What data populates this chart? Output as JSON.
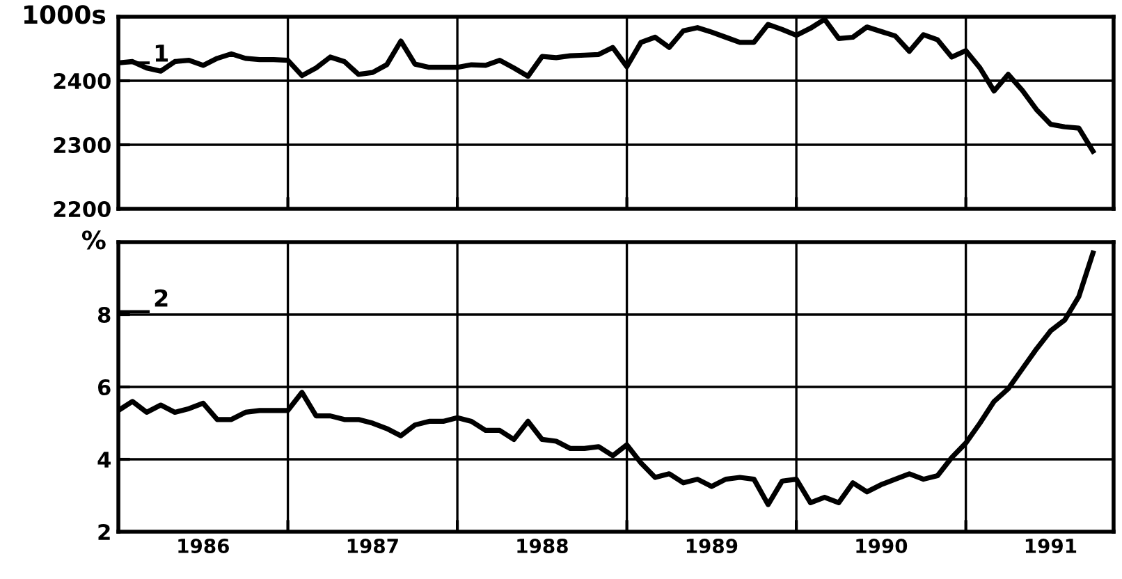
{
  "chart_data": [
    {
      "type": "line",
      "x": [
        "1986-01",
        "1986-02",
        "1986-03",
        "1986-04",
        "1986-05",
        "1986-06",
        "1986-07",
        "1986-08",
        "1986-09",
        "1986-10",
        "1986-11",
        "1986-12",
        "1987-01",
        "1987-02",
        "1987-03",
        "1987-04",
        "1987-05",
        "1987-06",
        "1987-07",
        "1987-08",
        "1987-09",
        "1987-10",
        "1987-11",
        "1987-12",
        "1988-01",
        "1988-02",
        "1988-03",
        "1988-04",
        "1988-05",
        "1988-06",
        "1988-07",
        "1988-08",
        "1988-09",
        "1988-10",
        "1988-11",
        "1988-12",
        "1989-01",
        "1989-02",
        "1989-03",
        "1989-04",
        "1989-05",
        "1989-06",
        "1989-07",
        "1989-08",
        "1989-09",
        "1989-10",
        "1989-11",
        "1989-12",
        "1990-01",
        "1990-02",
        "1990-03",
        "1990-04",
        "1990-05",
        "1990-06",
        "1990-07",
        "1990-08",
        "1990-09",
        "1990-10",
        "1990-11",
        "1990-12",
        "1991-01",
        "1991-02",
        "1991-03",
        "1991-04",
        "1991-05",
        "1991-06",
        "1991-07",
        "1991-08",
        "1991-09",
        "1991-10"
      ],
      "series": [
        {
          "name": "1",
          "color": "#000000",
          "values": [
            2428,
            2430,
            2420,
            2415,
            2430,
            2432,
            2424,
            2435,
            2442,
            2435,
            2433,
            2433,
            2432,
            2408,
            2420,
            2437,
            2430,
            2410,
            2413,
            2425,
            2462,
            2426,
            2421,
            2421,
            2421,
            2425,
            2424,
            2432,
            2420,
            2407,
            2438,
            2436,
            2439,
            2440,
            2441,
            2452,
            2422,
            2460,
            2468,
            2452,
            2478,
            2483,
            2476,
            2468,
            2460,
            2460,
            2488,
            2480,
            2471,
            2482,
            2496,
            2466,
            2468,
            2484,
            2477,
            2470,
            2446,
            2472,
            2464,
            2437,
            2447,
            2420,
            2384,
            2410,
            2385,
            2355,
            2332,
            2328,
            2326,
            2290
          ]
        }
      ],
      "xlim": [
        "1986-01-01",
        "1991-11-15"
      ],
      "xticks": [
        {
          "value": "1987-01-01",
          "label": null
        },
        {
          "value": "1988-01-01",
          "label": null
        },
        {
          "value": "1989-01-01",
          "label": null
        },
        {
          "value": "1990-01-01",
          "label": null
        },
        {
          "value": "1991-01-01",
          "label": null
        }
      ],
      "ylim": [
        2200,
        2500
      ],
      "yticks": [
        2200,
        2300,
        2400,
        {
          "value": 2500,
          "label": null
        }
      ],
      "ylabel": "1000s",
      "tick_labels": "y",
      "grid": true,
      "legend": "top left",
      "marker": "none",
      "line_style": "solid"
    },
    {
      "type": "line",
      "x": [
        "1986-01",
        "1986-02",
        "1986-03",
        "1986-04",
        "1986-05",
        "1986-06",
        "1986-07",
        "1986-08",
        "1986-09",
        "1986-10",
        "1986-11",
        "1986-12",
        "1987-01",
        "1987-02",
        "1987-03",
        "1987-04",
        "1987-05",
        "1987-06",
        "1987-07",
        "1987-08",
        "1987-09",
        "1987-10",
        "1987-11",
        "1987-12",
        "1988-01",
        "1988-02",
        "1988-03",
        "1988-04",
        "1988-05",
        "1988-06",
        "1988-07",
        "1988-08",
        "1988-09",
        "1988-10",
        "1988-11",
        "1988-12",
        "1989-01",
        "1989-02",
        "1989-03",
        "1989-04",
        "1989-05",
        "1989-06",
        "1989-07",
        "1989-08",
        "1989-09",
        "1989-10",
        "1989-11",
        "1989-12",
        "1990-01",
        "1990-02",
        "1990-03",
        "1990-04",
        "1990-05",
        "1990-06",
        "1990-07",
        "1990-08",
        "1990-09",
        "1990-10",
        "1990-11",
        "1990-12",
        "1991-01",
        "1991-02",
        "1991-03",
        "1991-04",
        "1991-05",
        "1991-06",
        "1991-07",
        "1991-08",
        "1991-09",
        "1991-10"
      ],
      "series": [
        {
          "name": "2",
          "color": "#000000",
          "values": [
            5.35,
            5.6,
            5.3,
            5.5,
            5.3,
            5.4,
            5.55,
            5.1,
            5.1,
            5.3,
            5.35,
            5.35,
            5.35,
            5.85,
            5.2,
            5.2,
            5.1,
            5.1,
            5.0,
            4.85,
            4.65,
            4.95,
            5.05,
            5.05,
            5.15,
            5.05,
            4.8,
            4.8,
            4.55,
            5.05,
            4.55,
            4.5,
            4.3,
            4.3,
            4.35,
            4.1,
            4.4,
            3.9,
            3.5,
            3.6,
            3.35,
            3.45,
            3.25,
            3.45,
            3.5,
            3.45,
            2.75,
            3.4,
            3.45,
            2.8,
            2.95,
            2.8,
            3.35,
            3.1,
            3.3,
            3.45,
            3.6,
            3.45,
            3.55,
            4.05,
            4.45,
            5.0,
            5.6,
            5.95,
            6.5,
            7.05,
            7.55,
            7.85,
            8.5,
            9.7
          ]
        }
      ],
      "xlim": [
        "1986-01-01",
        "1991-11-15"
      ],
      "xticks": [
        {
          "value": "1986-07-01",
          "label": "1986"
        },
        {
          "value": "1987-01-01",
          "label": null
        },
        {
          "value": "1987-07-01",
          "label": "1987"
        },
        {
          "value": "1988-01-01",
          "label": null
        },
        {
          "value": "1988-07-01",
          "label": "1988"
        },
        {
          "value": "1989-01-01",
          "label": null
        },
        {
          "value": "1989-07-01",
          "label": "1989"
        },
        {
          "value": "1990-01-01",
          "label": null
        },
        {
          "value": "1990-07-01",
          "label": "1990"
        },
        {
          "value": "1991-01-01",
          "label": null
        },
        {
          "value": "1991-07-01",
          "label": "1991"
        }
      ],
      "ylim": [
        2,
        10
      ],
      "yticks": [
        2,
        4,
        6,
        8,
        {
          "value": 10,
          "label": null
        }
      ],
      "ylabel": "%",
      "grid": true,
      "legend": "top left",
      "marker": "none",
      "line_style": "solid"
    }
  ]
}
